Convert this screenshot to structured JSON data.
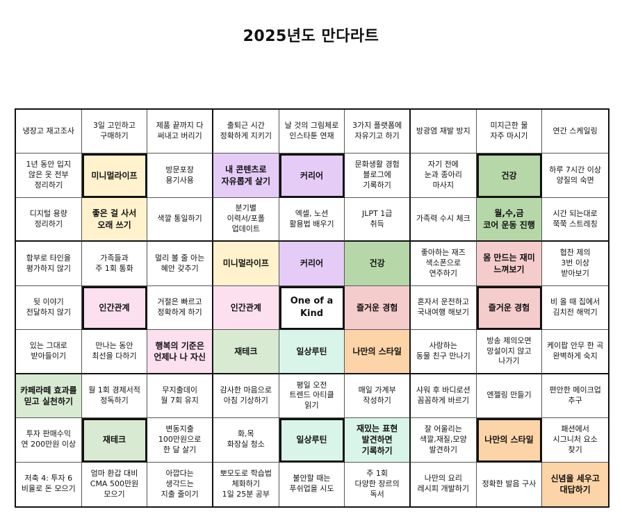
{
  "title": "2025년도 만다라트",
  "colors": {
    "yellow": "#fff2cc",
    "purple": "#e4ccf7",
    "green": "#d9ead3",
    "pink": "#fce0f0",
    "peach": "#f4cccc",
    "mint": "#d9f5ea",
    "orange": "#fcd4a8",
    "green_dark": "#b6d7a8"
  },
  "cells": [
    {
      "t": "냉장고 재고조사"
    },
    {
      "t": "3일 고민하고\n구매하기"
    },
    {
      "t": "제품 끝까지 다\n써내고 버리기"
    },
    {
      "t": "출퇴근 시간\n정확하게 지키기"
    },
    {
      "t": "날 것의 그림체로\n인스타툰 연재"
    },
    {
      "t": "3가지 플랫폼에\n자유기고 하기"
    },
    {
      "t": "방광염 재발 방지"
    },
    {
      "t": "미지근한 물\n자주 마시기"
    },
    {
      "t": "연간 스케일링"
    },
    {
      "t": "1년 동안 입지\n않은 옷 전부\n정리하기"
    },
    {
      "t": "미니멀라이프",
      "c": "yellow",
      "f": 1,
      "b": 1
    },
    {
      "t": "방문포장\n용기사용"
    },
    {
      "t": "내 콘텐츠로\n자유롭게 살기",
      "c": "purple",
      "b": 1
    },
    {
      "t": "커리어",
      "c": "purple",
      "f": 1,
      "b": 1
    },
    {
      "t": "문화생활 경험\n블로그에\n기록하기"
    },
    {
      "t": "자기 전에\n눈과 종아리\n마사지"
    },
    {
      "t": "건강",
      "c": "green_dark",
      "f": 1,
      "b": 1
    },
    {
      "t": "하루 7시간 이상\n양질의 숙면"
    },
    {
      "t": "디지털 용량\n정리하기"
    },
    {
      "t": "좋은 걸 사서\n오래 쓰기",
      "c": "yellow",
      "b": 1
    },
    {
      "t": "색깔 통일하기"
    },
    {
      "t": "분기별\n이력서/포폴\n업데이트"
    },
    {
      "t": "엑셀, 노션\n활용법 배우기"
    },
    {
      "t": "JLPT 1급\n취득"
    },
    {
      "t": "가족력 수시 체크"
    },
    {
      "t": "월,수,금\n코어 운동 진행",
      "c": "green_dark",
      "b": 1
    },
    {
      "t": "시간 되는대로\n쭉쭉 스트레칭"
    },
    {
      "t": "함부로 타인을\n평가하지 않기"
    },
    {
      "t": "가족들과\n주 1회 통화"
    },
    {
      "t": "멀리 볼 줄 아는\n혜안 갖추기"
    },
    {
      "t": "미니멀라이프",
      "c": "yellow",
      "b": 1
    },
    {
      "t": "커리어",
      "c": "purple",
      "b": 1
    },
    {
      "t": "건강",
      "c": "green_dark",
      "b": 1
    },
    {
      "t": "좋아하는 재즈\n색소폰으로\n연주하기"
    },
    {
      "t": "몸 만드는 재미\n느껴보기",
      "c": "peach",
      "b": 1
    },
    {
      "t": "협찬 제의\n3번 이상\n받아보기"
    },
    {
      "t": "뒷 이야기\n전달하지 않기"
    },
    {
      "t": "인간관계",
      "c": "pink",
      "f": 1,
      "b": 1
    },
    {
      "t": "거절은 빠르고\n정확하게 하기"
    },
    {
      "t": "인간관계",
      "c": "pink",
      "b": 1
    },
    {
      "t": "One of a Kind",
      "f": 1,
      "b": 1,
      "center": 1
    },
    {
      "t": "즐거운 경험",
      "c": "peach",
      "b": 1
    },
    {
      "t": "혼자서 운전하고\n국내여행 해보기"
    },
    {
      "t": "즐거운 경험",
      "c": "peach",
      "f": 1,
      "b": 1
    },
    {
      "t": "비 올 때 집에서\n김치전 해먹기"
    },
    {
      "t": "있는 그대로\n받아들이기"
    },
    {
      "t": "만나는 동안\n최선을 다하기"
    },
    {
      "t": "행복의 기준은\n언제나 나 자신",
      "c": "pink",
      "b": 1
    },
    {
      "t": "재테크",
      "c": "green",
      "b": 1
    },
    {
      "t": "일상루틴",
      "c": "mint",
      "b": 1
    },
    {
      "t": "나만의 스타일",
      "c": "orange",
      "b": 1
    },
    {
      "t": "사랑하는\n동물 친구 만나기"
    },
    {
      "t": "방송 제의오면\n망설이지 않고\n나가기"
    },
    {
      "t": "케이팝 안무 한 곡\n완벽하게 숙지"
    },
    {
      "t": "카페라떼 효과를\n믿고 실천하기",
      "c": "green",
      "b": 1
    },
    {
      "t": "월 1회 경제서적\n정독하기"
    },
    {
      "t": "무지출데이\n월 7회 유지"
    },
    {
      "t": "감사한 마음으로\n아침 기상하기"
    },
    {
      "t": "평일 오전\n트렌드 아티클\n읽기"
    },
    {
      "t": "매일 가계부\n작성하기"
    },
    {
      "t": "샤워 후 바디로션\n꼼꼼하게 바르기"
    },
    {
      "t": "엔젤링 만들기"
    },
    {
      "t": "편안한 메이크업\n추구"
    },
    {
      "t": "투자 판매수익\n연 200만원 이상"
    },
    {
      "t": "재테크",
      "c": "green",
      "f": 1,
      "b": 1
    },
    {
      "t": "변동지출\n100만원으로\n한 달 살기"
    },
    {
      "t": "화,목\n화장실 청소"
    },
    {
      "t": "일상루틴",
      "c": "mint",
      "f": 1,
      "b": 1
    },
    {
      "t": "재밌는 표현\n발견하면\n기록하기",
      "c": "mint",
      "b": 1
    },
    {
      "t": "잘 어울리는\n색깔,재질,모양\n발견하기"
    },
    {
      "t": "나만의 스타일",
      "c": "orange",
      "f": 1,
      "b": 1
    },
    {
      "t": "패션에서\n시그니처 요소\n찾기"
    },
    {
      "t": "저축 4: 투자 6\n비율로 돈 모으기"
    },
    {
      "t": "엄마 환갑 대비\nCMA 500만원\n모으기"
    },
    {
      "t": "아깝다는\n생각드는\n지출 줄이기"
    },
    {
      "t": "뽀모도로 학습법\n체화하기\n1일 25분 공부"
    },
    {
      "t": "불안할 때는\n푸쉬업을 시도"
    },
    {
      "t": "주 1회\n다양한 장르의\n독서"
    },
    {
      "t": "나만의 요리\n레시피 개발하기"
    },
    {
      "t": "정확한 발음 구사"
    },
    {
      "t": "신념을 세우고\n대답하기",
      "c": "orange",
      "b": 1
    }
  ]
}
